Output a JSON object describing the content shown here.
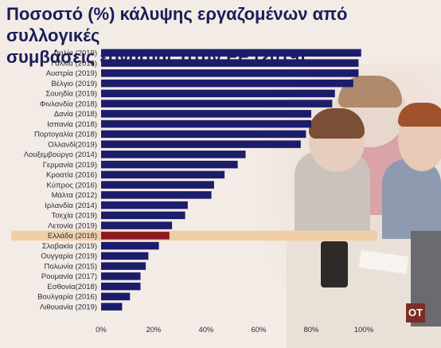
{
  "title_line1": "Ποσοστό (%) κάλυψης εργαζομένων από συλλογικές",
  "title_line2": "συμβάσεις εργασίας στην ΕΕ (2019)",
  "logo_text": "ΟΤ",
  "colors": {
    "bar": "#1b1d6b",
    "highlight_bar": "#8b1a1f",
    "highlight_band": "#f0cfa8"
  },
  "chart_data": {
    "type": "bar",
    "orientation": "horizontal",
    "title": "Ποσοστό (%) κάλυψης εργαζομένων από συλλογικές συμβάσεις εργασίας στην ΕΕ (2019)",
    "categories": [
      "Ιταλία (2019)",
      "Γαλλία (2018)",
      "Αυστρία (2019)",
      "Βέλγιο (2019)",
      "Σουηδία (2019)",
      "Φινλανδία (2018)",
      "Δανία (2018)",
      "Ισπανία (2018)",
      "Πορτογαλία (2018)",
      "Ολλανδί(2019)",
      "Λουξεμβούργο (2014)",
      "Γερμανία (2019)",
      "Κροατία (2016)",
      "Κύπρος (2016)",
      "Μάλτα (2012)",
      "Ιρλανδία (2014)",
      "Τσεχία (2019)",
      "Λετονία (2019)",
      "Ελλάδα (2018)",
      "Σλοβακία (2019)",
      "Ουγγαρία (2019)",
      "Πολωνία (2015)",
      "Ρουμανία (2017)",
      "Εσθονία(2018)",
      "Βουλγαρία (2016)",
      "Λιθουανία (2019)"
    ],
    "values": [
      99,
      98,
      98,
      96,
      89,
      88,
      80,
      80,
      78,
      76,
      55,
      52,
      47,
      43,
      42,
      33,
      32,
      27,
      26,
      22,
      18,
      17,
      15,
      15,
      11,
      8
    ],
    "highlight_category": "Ελλάδα (2018)",
    "xlim": [
      0,
      100
    ],
    "xticks": [
      "0%",
      "20%",
      "40%",
      "60%",
      "80%",
      "100%"
    ],
    "grid": false
  }
}
